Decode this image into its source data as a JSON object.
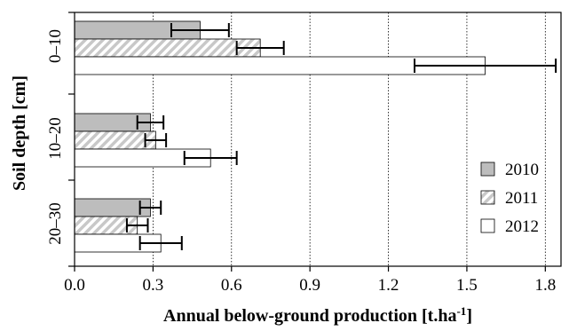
{
  "chart_data": {
    "type": "bar",
    "orientation": "horizontal",
    "xlabel": "Annual below-ground production [t.ha",
    "xlabel_superscript": "-1",
    "xlabel_close": "]",
    "ylabel": "Soil depth [cm]",
    "xlim": [
      0,
      1.86
    ],
    "xticks": [
      "0.0",
      "0.3",
      "0.6",
      "0.9",
      "1.2",
      "1.5",
      "1.8"
    ],
    "xtick_values": [
      0,
      0.3,
      0.6,
      0.9,
      1.2,
      1.5,
      1.8
    ],
    "grid": "vertical dotted",
    "legend_position": "bottom-right",
    "categories": [
      "0–10",
      "10–20",
      "20–30"
    ],
    "series": [
      {
        "name": "2010",
        "fill": "#bdbdbd",
        "pattern": "solid",
        "values": [
          0.48,
          0.29,
          0.29
        ],
        "errors": [
          0.11,
          0.05,
          0.04
        ]
      },
      {
        "name": "2011",
        "fill": "#d9d9d9",
        "pattern": "hatch",
        "values": [
          0.71,
          0.31,
          0.24
        ],
        "errors": [
          0.09,
          0.04,
          0.04
        ]
      },
      {
        "name": "2012",
        "fill": "#ffffff",
        "pattern": "solid",
        "values": [
          1.57,
          0.52,
          0.33
        ],
        "errors": [
          0.27,
          0.1,
          0.08
        ]
      }
    ]
  }
}
